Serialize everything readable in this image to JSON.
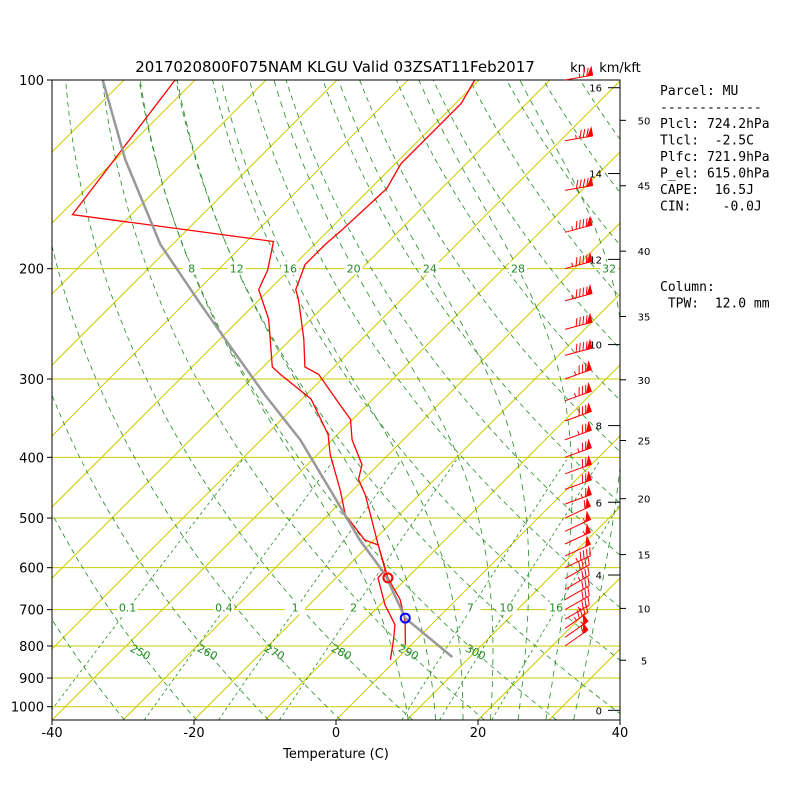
{
  "chart_data": {
    "type": "skewt",
    "title": "2017020800F075NAM KLGU Valid 03ZSAT11Feb2017",
    "wind_unit": "kn",
    "height_unit": "km/kft",
    "xlabel": "Temperature (C)",
    "xlim": [
      -40,
      40
    ],
    "xticks": [
      -40,
      -20,
      0,
      20,
      40
    ],
    "ylim": [
      1050,
      100
    ],
    "yticks": [
      100,
      200,
      300,
      400,
      500,
      600,
      700,
      800,
      900,
      1000
    ],
    "log_scale": true,
    "grid": true,
    "grid_color": "#cccc00",
    "isotherms": [
      -120,
      -110,
      -100,
      -90,
      -80,
      -70,
      -60,
      -50,
      -40,
      -30,
      -20,
      -10,
      0,
      10,
      20,
      30,
      40
    ],
    "adiabat_color": "#228b22",
    "dry_adiabats": [
      200,
      210,
      220,
      230,
      240,
      250,
      260,
      270,
      280,
      290,
      300,
      310,
      320,
      330,
      340,
      350,
      360,
      370,
      380,
      390,
      400,
      410,
      420,
      430,
      440,
      450
    ],
    "dry_adiabat_labels": [
      250,
      260,
      270,
      280,
      290,
      300
    ],
    "moist_adiabats": [
      8,
      12,
      16,
      20,
      24,
      28,
      32
    ],
    "mixing_ratios": [
      0.1,
      0.4,
      1,
      2,
      7,
      10,
      16
    ],
    "profiles": [
      {
        "color": "#ff0000",
        "p": [
          797,
          732,
          675,
          623,
          552,
          459,
          434,
          411,
          375,
          348,
          330,
          295,
          287,
          259,
          224,
          216,
          197,
          183,
          174,
          149,
          136,
          109,
          100
        ],
        "t": [
          -0.8,
          -4.1,
          -7.9,
          -12.7,
          -18.7,
          -27.6,
          -30.7,
          -32.3,
          -37.2,
          -40.3,
          -43.8,
          -51.1,
          -54.1,
          -58.2,
          -64.5,
          -66.3,
          -68.5,
          -68.5,
          -68.2,
          -67.7,
          -69.2,
          -69.2,
          -70.6
        ]
      },
      {
        "color": "#ff0000",
        "p": [
          842,
          782,
          740,
          688,
          623,
          605,
          552,
          542,
          494,
          451,
          396,
          368,
          323,
          295,
          287,
          241,
          216,
          201,
          181,
          164,
          100
        ],
        "t": [
          -0.8,
          -3.2,
          -5.1,
          -9.3,
          -14.1,
          -14.2,
          -18.7,
          -21.3,
          -27.6,
          -31.8,
          -38.2,
          -41.3,
          -48.7,
          -56.5,
          -58.7,
          -65.9,
          -71.5,
          -73,
          -76.2,
          -108.3,
          -112.8
        ]
      },
      {
        "color": "#999999",
        "p": [
          833,
          722,
          616,
          542,
          451,
          375,
          318,
          274,
          228,
          183,
          134,
          100
        ],
        "t": [
          7.5,
          -4.6,
          -13.5,
          -22,
          -33.2,
          -44.5,
          -55.8,
          -65.6,
          -77.6,
          -91.7,
          -108.6,
          -123
        ]
      }
    ],
    "markers": [
      {
        "p": 722,
        "t": -4.6,
        "color": "#0000ff"
      },
      {
        "p": 623,
        "t": -12.7,
        "color": "#ff0000"
      }
    ],
    "wind": {
      "color": "#ff0000",
      "p": [
        100,
        125,
        150,
        175,
        200,
        225,
        250,
        275,
        300,
        325,
        350,
        375,
        400,
        425,
        450,
        475,
        500,
        525,
        550,
        575,
        600,
        625,
        650,
        675,
        700,
        725,
        750,
        775,
        800
      ],
      "speed": [
        75,
        85,
        90,
        95,
        95,
        95,
        90,
        90,
        85,
        85,
        80,
        75,
        75,
        70,
        70,
        65,
        60,
        55,
        55,
        50,
        45,
        40,
        35,
        30,
        30,
        35,
        45,
        55,
        60
      ],
      "direction": [
        260,
        260,
        260,
        255,
        255,
        255,
        255,
        255,
        250,
        250,
        250,
        250,
        250,
        250,
        250,
        250,
        245,
        245,
        245,
        245,
        245,
        240,
        240,
        240,
        240,
        240,
        235,
        235,
        235
      ]
    },
    "km_ticks": [
      0,
      4,
      6,
      8,
      10,
      12,
      14,
      16
    ],
    "kft_ticks": [
      5,
      10,
      15,
      20,
      25,
      30,
      35,
      40,
      45,
      50
    ],
    "parcel_text": [
      "Parcel: MU",
      "-------------",
      "Plcl: 724.2hPa",
      "Tlcl:  -2.5C",
      "Plfc: 721.9hPa",
      "P_el: 615.0hPa",
      "CAPE:  16.5J",
      "CIN:    -0.0J"
    ],
    "column_text": [
      "Column:",
      " TPW:  12.0 mm"
    ]
  }
}
